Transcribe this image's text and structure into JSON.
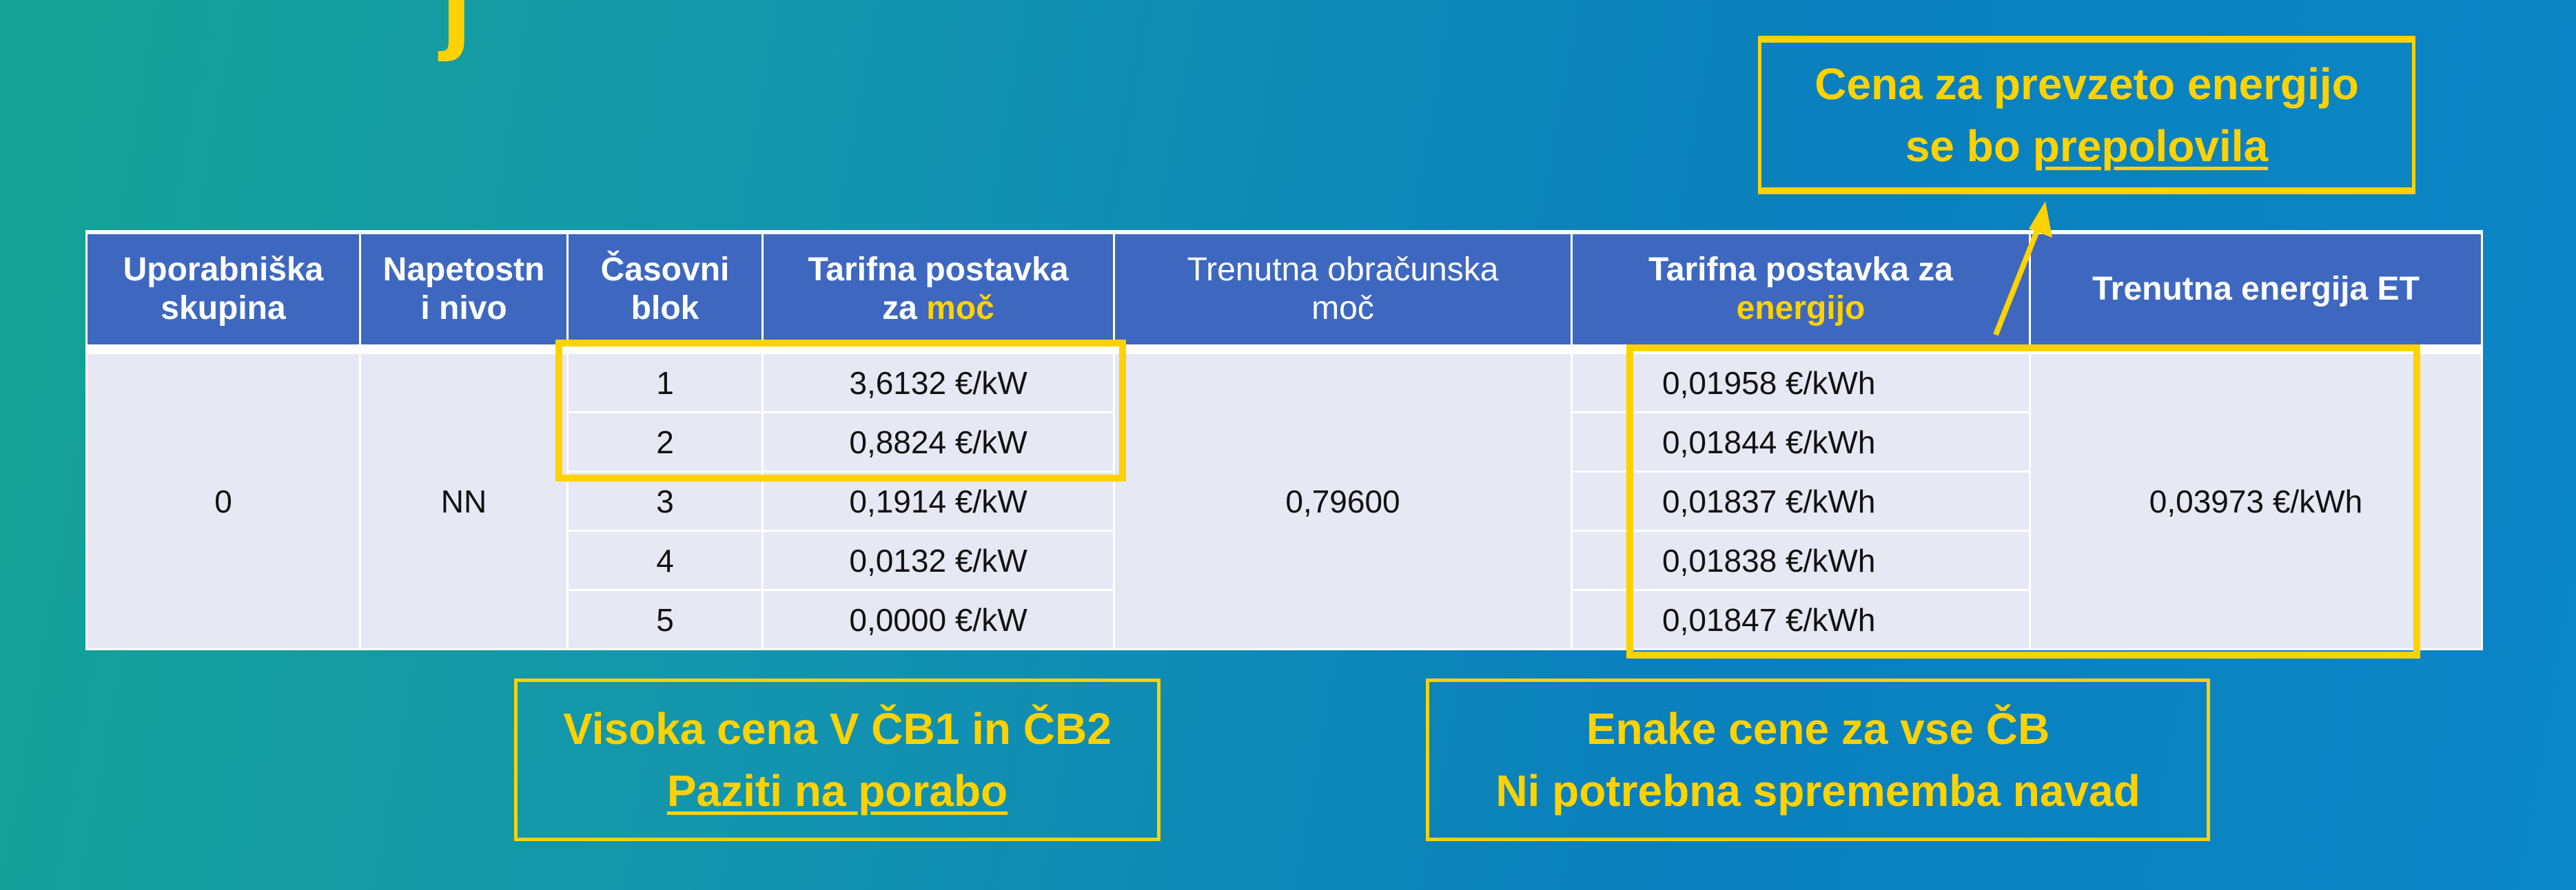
{
  "table": {
    "headers": {
      "group": "Uporabniška skupina",
      "voltage_l1": "Napetostn",
      "voltage_l2": "i nivo",
      "block_l1": "Časovni",
      "block_l2": "blok",
      "power_tariff_l1": "Tarifna postavka",
      "power_tariff_l2a": "za ",
      "power_tariff_l2b": "moč",
      "billing_power_l1": "Trenutna obračunska",
      "billing_power_l2": "moč",
      "energy_tariff_l1": "Tarifna postavka za",
      "energy_tariff_l2": "energijo",
      "current_energy": "Trenutna energija ET"
    },
    "group": "0",
    "voltage": "NN",
    "billing_power": "0,79600",
    "current_energy": "0,03973 €/kWh",
    "rows": [
      {
        "block": "1",
        "power_tariff": "3,6132 €/kW",
        "energy_tariff": "0,01958 €/kWh"
      },
      {
        "block": "2",
        "power_tariff": "0,8824 €/kW",
        "energy_tariff": "0,01844 €/kWh"
      },
      {
        "block": "3",
        "power_tariff": "0,1914 €/kW",
        "energy_tariff": "0,01837 €/kWh"
      },
      {
        "block": "4",
        "power_tariff": "0,0132 €/kW",
        "energy_tariff": "0,01838 €/kWh"
      },
      {
        "block": "5",
        "power_tariff": "0,0000 €/kW",
        "energy_tariff": "0,01847 €/kWh"
      }
    ]
  },
  "callouts": {
    "top": {
      "line1": "Cena za prevzeto energijo",
      "line2a": "se bo ",
      "line2b": "prepolovila"
    },
    "bottom_left": {
      "line1": "Visoka cena V ČB1 in ČB2",
      "line2": "Paziti na porabo"
    },
    "bottom_right": {
      "line1": "Enake cene za vse ČB",
      "line2": "Ni potrebna sprememba navad"
    }
  },
  "colors": {
    "accent": "#ffd200",
    "header": "#3e68bf",
    "cell": "#e6e8f3"
  }
}
